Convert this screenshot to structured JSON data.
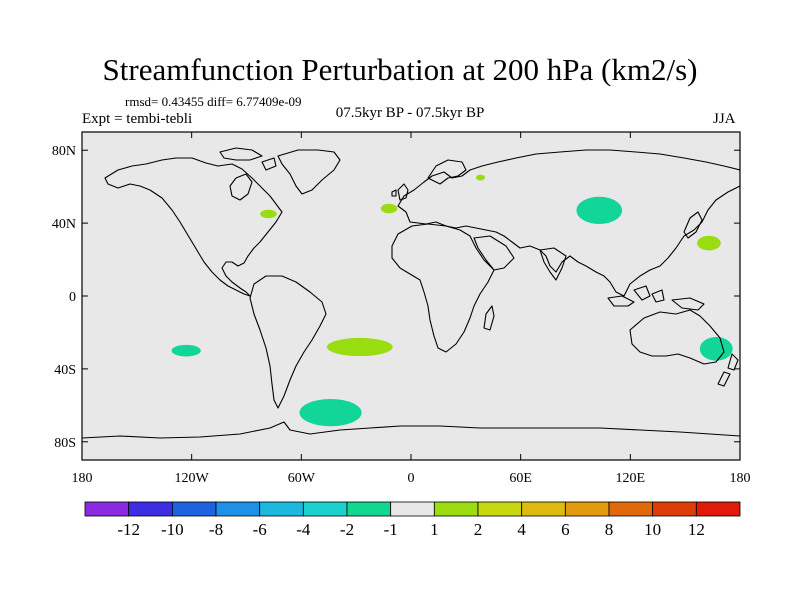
{
  "title": "Streamfunction Perturbation at 200 hPa (km2/s)",
  "stats": "rmsd= 0.43455 diff= 6.77409e-09",
  "expt": "Expt = tembi-tebli",
  "center_label": "07.5kyr BP - 07.5kyr BP",
  "season": "JJA",
  "map": {
    "background": "#e8e8e8",
    "lon_ticks": [
      {
        "lon": -180,
        "label": "180"
      },
      {
        "lon": -120,
        "label": "120W"
      },
      {
        "lon": -60,
        "label": "60W"
      },
      {
        "lon": 0,
        "label": "0"
      },
      {
        "lon": 60,
        "label": "60E"
      },
      {
        "lon": 120,
        "label": "120E"
      },
      {
        "lon": 180,
        "label": "180"
      }
    ],
    "lat_ticks": [
      {
        "lat": 80,
        "label": "80N"
      },
      {
        "lat": 40,
        "label": "40N"
      },
      {
        "lat": 0,
        "label": "0"
      },
      {
        "lat": -40,
        "label": "40S"
      },
      {
        "lat": -80,
        "label": "80S"
      }
    ],
    "anomalies": [
      {
        "name": "anomaly-north-pacific-east",
        "lon": 163,
        "lat": 29,
        "rlon": 6.5,
        "rlat": 4,
        "level": "1 to 2",
        "color": "#99dd10"
      },
      {
        "name": "anomaly-central-asia",
        "lon": 103,
        "lat": 47,
        "rlon": 12.5,
        "rlat": 7.5,
        "level": "-2 to -1",
        "color": "#11d697"
      },
      {
        "name": "anomaly-great-lakes",
        "lon": -78,
        "lat": 45,
        "rlon": 4.5,
        "rlat": 2.3,
        "level": "1 to 2",
        "color": "#99dd10"
      },
      {
        "name": "anomaly-north-atlantic",
        "lon": -12,
        "lat": 48,
        "rlon": 4.5,
        "rlat": 2.6,
        "level": "1 to 2",
        "color": "#99dd10"
      },
      {
        "name": "anomaly-black-sea",
        "lon": 38,
        "lat": 65,
        "rlon": 2.5,
        "rlat": 1.6,
        "level": "1 to 2",
        "color": "#99dd10"
      },
      {
        "name": "anomaly-south-pacific",
        "lon": -123,
        "lat": -30,
        "rlon": 8,
        "rlat": 3.2,
        "level": "-2 to -1",
        "color": "#11d697"
      },
      {
        "name": "anomaly-south-atlantic",
        "lon": -28,
        "lat": -28,
        "rlon": 18,
        "rlat": 5,
        "level": "1 to 2",
        "color": "#99dd10"
      },
      {
        "name": "anomaly-southern-ocean",
        "lon": -44,
        "lat": -64,
        "rlon": 17,
        "rlat": 7.5,
        "level": "-2 to -1",
        "color": "#11d697"
      },
      {
        "name": "anomaly-east-australia",
        "lon": 167,
        "lat": -29,
        "rlon": 9,
        "rlat": 6.5,
        "level": "-2 to -1",
        "color": "#11d697"
      }
    ]
  },
  "colorbar": {
    "colors": [
      "#8a2be2",
      "#3d2ee3",
      "#1e62e0",
      "#1e90e6",
      "#1bb9de",
      "#19d1cd",
      "#12d790",
      "#e8e8e8",
      "#9cdd11",
      "#c8d810",
      "#dfbb10",
      "#e1990d",
      "#e06a0a",
      "#de3d08",
      "#e11b0b"
    ],
    "labels": [
      "-12",
      "-10",
      "-8",
      "-6",
      "-4",
      "-2",
      "-1",
      "1",
      "2",
      "4",
      "6",
      "8",
      "10",
      "12"
    ]
  }
}
